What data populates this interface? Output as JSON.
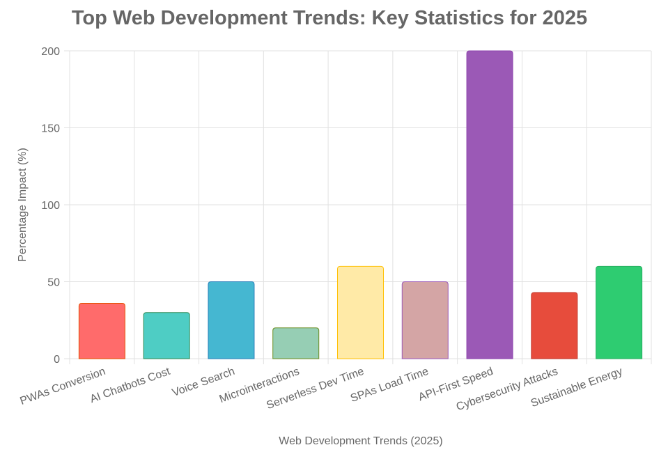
{
  "chart_data": {
    "type": "bar",
    "title": "Top Web Development Trends: Key Statistics for 2025",
    "xlabel": "Web Development Trends (2025)",
    "ylabel": "Percentage Impact (%)",
    "ylim": [
      0,
      200
    ],
    "yticks": [
      0,
      50,
      100,
      150,
      200
    ],
    "grid": true,
    "legend": "none",
    "categories": [
      "PWAs Conversion",
      "AI Chatbots Cost",
      "Voice Search",
      "Microinteractions",
      "Serverless Dev Time",
      "SPAs Load Time",
      "API-First Speed",
      "Cybersecurity Attacks",
      "Sustainable Energy"
    ],
    "values": [
      36,
      30,
      50,
      20,
      60,
      50,
      200,
      43,
      60
    ],
    "colors": [
      "#FF6B6B",
      "#4ECDC4",
      "#45B7D1",
      "#96CEB4",
      "#FFEAA7",
      "#D4A5A5",
      "#9B59B6",
      "#E74C3C",
      "#2ECC71"
    ],
    "border_colors": [
      "#E65100",
      "#2E8B57",
      "#2980B9",
      "#6B8E23",
      "#FFC107",
      "#9B59B6",
      "#8E44AD",
      "#C0392B",
      "#27AE60"
    ]
  }
}
